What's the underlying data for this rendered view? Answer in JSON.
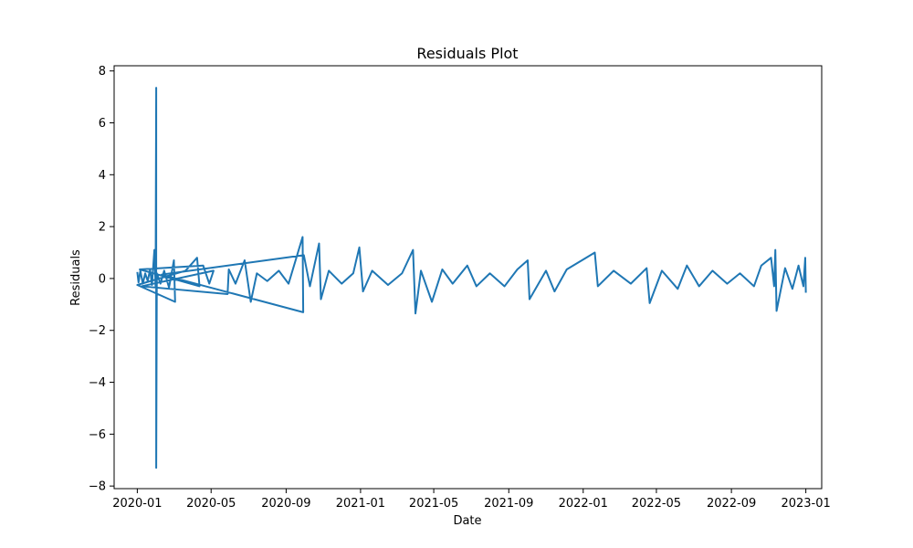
{
  "chart_data": {
    "type": "line",
    "title": "Residuals Plot",
    "xlabel": "Date",
    "ylabel": "Residuals",
    "x_axis": {
      "type": "date",
      "range": [
        "2019-11-24",
        "2023-01-27"
      ],
      "ticks": [
        "2020-01-01",
        "2020-05-01",
        "2020-09-01",
        "2021-01-01",
        "2021-05-01",
        "2021-09-01",
        "2022-01-01",
        "2022-05-01",
        "2022-09-01",
        "2023-01-01"
      ],
      "tick_labels": [
        "2020-01",
        "2020-05",
        "2020-09",
        "2021-01",
        "2021-05",
        "2021-09",
        "2022-01",
        "2022-05",
        "2022-09",
        "2023-01"
      ]
    },
    "y_axis": {
      "range": [
        -8.1,
        8.2
      ],
      "ticks": [
        -8,
        -6,
        -4,
        -2,
        0,
        2,
        4,
        6,
        8
      ],
      "tick_labels": [
        "−8",
        "−6",
        "−4",
        "−2",
        "0",
        "2",
        "4",
        "6",
        "8"
      ]
    },
    "grid": false,
    "legend": "none",
    "series": [
      {
        "color": "#1f77b4",
        "points": [
          {
            "x": "2020-01-01",
            "y": 0.25
          },
          {
            "x": "2020-01-03",
            "y": -0.15
          },
          {
            "x": "2020-01-06",
            "y": 0.3
          },
          {
            "x": "2020-01-10",
            "y": -0.2
          },
          {
            "x": "2020-01-14",
            "y": 0.2
          },
          {
            "x": "2020-01-18",
            "y": -0.1
          },
          {
            "x": "2020-01-22",
            "y": 0.35
          },
          {
            "x": "2020-01-25",
            "y": -0.25
          },
          {
            "x": "2020-01-29",
            "y": 1.1
          },
          {
            "x": "2020-01-31",
            "y": -0.3
          },
          {
            "x": "2020-02-01",
            "y": 7.35
          },
          {
            "x": "2020-02-01",
            "y": -7.3
          },
          {
            "x": "2020-02-02",
            "y": 0.2
          },
          {
            "x": "2020-02-08",
            "y": -0.2
          },
          {
            "x": "2020-02-14",
            "y": 0.3
          },
          {
            "x": "2020-02-22",
            "y": -0.35
          },
          {
            "x": "2020-03-01",
            "y": 0.7
          },
          {
            "x": "2020-03-03",
            "y": -0.9
          },
          {
            "x": "2020-01-01",
            "y": -0.25
          },
          {
            "x": "2020-03-20",
            "y": 0.3
          },
          {
            "x": "2020-04-08",
            "y": 0.8
          },
          {
            "x": "2020-04-12",
            "y": -0.3
          },
          {
            "x": "2020-01-05",
            "y": 0.35
          },
          {
            "x": "2020-04-18",
            "y": 0.5
          },
          {
            "x": "2020-04-28",
            "y": -0.2
          },
          {
            "x": "2020-05-05",
            "y": 0.3
          },
          {
            "x": "2020-01-08",
            "y": -0.3
          },
          {
            "x": "2020-05-28",
            "y": -0.6
          },
          {
            "x": "2020-05-30",
            "y": 0.35
          },
          {
            "x": "2020-06-10",
            "y": -0.2
          },
          {
            "x": "2020-06-25",
            "y": 0.7
          },
          {
            "x": "2020-07-05",
            "y": -0.9
          },
          {
            "x": "2020-07-15",
            "y": 0.2
          },
          {
            "x": "2020-08-01",
            "y": -0.1
          },
          {
            "x": "2020-08-20",
            "y": 0.3
          },
          {
            "x": "2020-09-05",
            "y": -0.2
          },
          {
            "x": "2020-09-28",
            "y": 1.6
          },
          {
            "x": "2020-09-29",
            "y": -1.3
          },
          {
            "x": "2020-02-10",
            "y": 0.15
          },
          {
            "x": "2020-09-30",
            "y": 0.9
          },
          {
            "x": "2020-10-10",
            "y": -0.3
          },
          {
            "x": "2020-10-25",
            "y": 1.35
          },
          {
            "x": "2020-10-28",
            "y": -0.8
          },
          {
            "x": "2020-11-10",
            "y": 0.3
          },
          {
            "x": "2020-12-01",
            "y": -0.2
          },
          {
            "x": "2020-12-20",
            "y": 0.2
          },
          {
            "x": "2020-12-30",
            "y": 1.2
          },
          {
            "x": "2021-01-05",
            "y": -0.5
          },
          {
            "x": "2021-01-20",
            "y": 0.3
          },
          {
            "x": "2021-02-15",
            "y": -0.25
          },
          {
            "x": "2021-03-10",
            "y": 0.2
          },
          {
            "x": "2021-03-28",
            "y": 1.1
          },
          {
            "x": "2021-04-01",
            "y": -1.35
          },
          {
            "x": "2021-04-10",
            "y": 0.3
          },
          {
            "x": "2021-04-28",
            "y": -0.9
          },
          {
            "x": "2021-05-15",
            "y": 0.35
          },
          {
            "x": "2021-06-01",
            "y": -0.2
          },
          {
            "x": "2021-06-25",
            "y": 0.5
          },
          {
            "x": "2021-07-10",
            "y": -0.3
          },
          {
            "x": "2021-08-01",
            "y": 0.2
          },
          {
            "x": "2021-08-25",
            "y": -0.3
          },
          {
            "x": "2021-09-15",
            "y": 0.35
          },
          {
            "x": "2021-10-02",
            "y": 0.7
          },
          {
            "x": "2021-10-05",
            "y": -0.8
          },
          {
            "x": "2021-11-01",
            "y": 0.3
          },
          {
            "x": "2021-11-15",
            "y": -0.5
          },
          {
            "x": "2021-12-05",
            "y": 0.35
          },
          {
            "x": "2022-01-20",
            "y": 1.0
          },
          {
            "x": "2022-01-25",
            "y": -0.3
          },
          {
            "x": "2022-02-20",
            "y": 0.3
          },
          {
            "x": "2022-03-20",
            "y": -0.2
          },
          {
            "x": "2022-04-15",
            "y": 0.4
          },
          {
            "x": "2022-04-20",
            "y": -0.95
          },
          {
            "x": "2022-05-10",
            "y": 0.3
          },
          {
            "x": "2022-06-05",
            "y": -0.4
          },
          {
            "x": "2022-06-20",
            "y": 0.5
          },
          {
            "x": "2022-07-10",
            "y": -0.3
          },
          {
            "x": "2022-08-01",
            "y": 0.3
          },
          {
            "x": "2022-08-25",
            "y": -0.2
          },
          {
            "x": "2022-09-15",
            "y": 0.2
          },
          {
            "x": "2022-10-08",
            "y": -0.3
          },
          {
            "x": "2022-10-20",
            "y": 0.5
          },
          {
            "x": "2022-11-05",
            "y": 0.8
          },
          {
            "x": "2022-11-10",
            "y": -0.3
          },
          {
            "x": "2022-11-12",
            "y": 1.1
          },
          {
            "x": "2022-11-14",
            "y": -1.25
          },
          {
            "x": "2022-11-28",
            "y": 0.4
          },
          {
            "x": "2022-12-10",
            "y": -0.4
          },
          {
            "x": "2022-12-20",
            "y": 0.5
          },
          {
            "x": "2022-12-28",
            "y": -0.3
          },
          {
            "x": "2022-12-31",
            "y": 0.8
          },
          {
            "x": "2023-01-01",
            "y": -0.55
          }
        ]
      }
    ]
  }
}
